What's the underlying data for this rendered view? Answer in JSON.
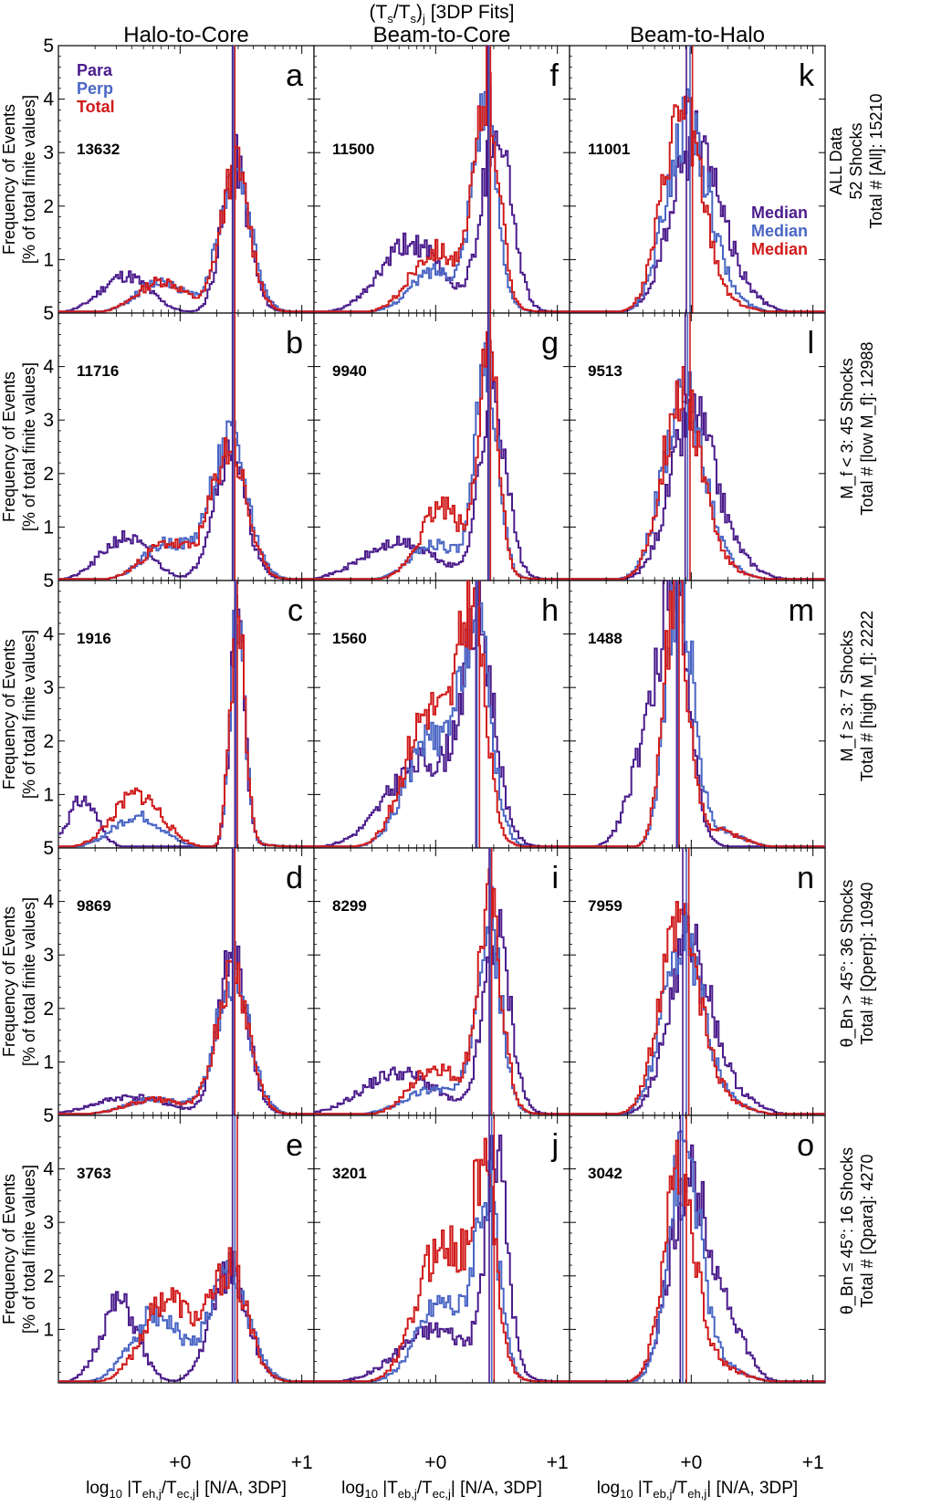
{
  "figure": {
    "title": "(T_s/T_s)_j [3DP Fits]",
    "columns": [
      "Halo-to-Core",
      "Beam-to-Core",
      "Beam-to-Halo"
    ],
    "ylabel": {
      "line1": "Frequency of Events",
      "line2": "[% of total finite values]"
    },
    "xlabels": [
      {
        "prefix": "log",
        "sub": "10",
        "body": " |T",
        "sub1": "eh,j",
        "mid": "/T",
        "sub2": "ec,j",
        "suffix": "| [N/A, 3DP]"
      },
      {
        "prefix": "log",
        "sub": "10",
        "body": " |T",
        "sub1": "eb,j",
        "mid": "/T",
        "sub2": "ec,j",
        "suffix": "| [N/A, 3DP]"
      },
      {
        "prefix": "log",
        "sub": "10",
        "body": " |T",
        "sub1": "eb,j",
        "mid": "/T",
        "sub2": "eh,j",
        "suffix": "| [N/A, 3DP]"
      }
    ],
    "xtick_labels": [
      "+0",
      "+1"
    ],
    "ytick_labels": [
      "1",
      "2",
      "3",
      "4",
      "5"
    ],
    "legend": [
      "Para",
      "Perp",
      "Total"
    ],
    "median_labels": [
      "Median",
      "Median",
      "Median"
    ],
    "colors": {
      "para": "#4B1C8C",
      "perp": "#4A66C4",
      "total": "#D01C1C"
    },
    "row_labels": [
      {
        "line1": "ALL Data",
        "line2": "52 Shocks",
        "line3": "Total # [All]:  15210"
      },
      {
        "line1": "M_f < 3:  45 Shocks",
        "line2": "Total # [low M_f]:  12988"
      },
      {
        "line1": "M_f ≥ 3:  7 Shocks",
        "line2": "Total # [high M_f]:  2222"
      },
      {
        "line1": "θ_Bn > 45°:  36 Shocks",
        "line2": "Total # [Qperp]:  10940"
      },
      {
        "line1": "θ_Bn ≤ 45°:  16 Shocks",
        "line2": "Total # [Qpara]:  4270"
      }
    ]
  },
  "chart_data": {
    "type": "histogram-grid",
    "rows": 5,
    "cols": 3,
    "xlim": [
      -1.0,
      1.1
    ],
    "ylim": [
      0,
      5
    ],
    "panels": [
      {
        "letter": "a",
        "count": "13632",
        "row": 0,
        "col": 0,
        "curves": {
          "para": {
            "mu": 0.45,
            "sig": 0.11,
            "amp": 2.7,
            "tailMu": -0.45,
            "tailSig": 0.2,
            "tailAmp": 0.7,
            "seed": 11
          },
          "perp": {
            "mu": 0.45,
            "sig": 0.13,
            "amp": 2.6,
            "tailMu": -0.15,
            "tailSig": 0.2,
            "tailAmp": 0.6,
            "seed": 12
          },
          "total": {
            "mu": 0.45,
            "sig": 0.12,
            "amp": 2.6,
            "tailMu": -0.15,
            "tailSig": 0.2,
            "tailAmp": 0.6,
            "seed": 13
          }
        },
        "medians": [
          0.43,
          0.44,
          0.45
        ]
      },
      {
        "letter": "b",
        "count": "11716",
        "row": 1,
        "col": 0,
        "curves": {
          "para": {
            "mu": 0.4,
            "sig": 0.13,
            "amp": 2.4,
            "tailMu": -0.45,
            "tailSig": 0.2,
            "tailAmp": 0.8,
            "seed": 21
          },
          "perp": {
            "mu": 0.4,
            "sig": 0.15,
            "amp": 2.5,
            "tailMu": -0.1,
            "tailSig": 0.2,
            "tailAmp": 0.7,
            "seed": 22
          },
          "total": {
            "mu": 0.4,
            "sig": 0.14,
            "amp": 2.4,
            "tailMu": -0.1,
            "tailSig": 0.2,
            "tailAmp": 0.7,
            "seed": 23
          }
        },
        "medians": [
          0.43,
          0.44,
          0.45
        ]
      },
      {
        "letter": "c",
        "count": "1916",
        "row": 2,
        "col": 0,
        "curves": {
          "para": {
            "mu": 0.47,
            "sig": 0.06,
            "amp": 4.2,
            "tailMu": -0.8,
            "tailSig": 0.12,
            "tailAmp": 0.9,
            "seed": 31
          },
          "perp": {
            "mu": 0.47,
            "sig": 0.06,
            "amp": 4.5,
            "tailMu": -0.35,
            "tailSig": 0.2,
            "tailAmp": 0.6,
            "seed": 32
          },
          "total": {
            "mu": 0.47,
            "sig": 0.06,
            "amp": 4.3,
            "tailMu": -0.35,
            "tailSig": 0.2,
            "tailAmp": 1.0,
            "seed": 33
          }
        },
        "medians": [
          0.45,
          0.46,
          0.47
        ]
      },
      {
        "letter": "d",
        "count": "9869",
        "row": 3,
        "col": 0,
        "curves": {
          "para": {
            "mu": 0.43,
            "sig": 0.12,
            "amp": 2.9,
            "tailMu": -0.4,
            "tailSig": 0.3,
            "tailAmp": 0.35,
            "seed": 41
          },
          "perp": {
            "mu": 0.43,
            "sig": 0.14,
            "amp": 2.5,
            "tailMu": -0.2,
            "tailSig": 0.25,
            "tailAmp": 0.3,
            "seed": 42
          },
          "total": {
            "mu": 0.43,
            "sig": 0.13,
            "amp": 2.7,
            "tailMu": -0.2,
            "tailSig": 0.25,
            "tailAmp": 0.3,
            "seed": 43
          }
        },
        "medians": [
          0.43,
          0.44,
          0.45
        ]
      },
      {
        "letter": "e",
        "count": "3763",
        "row": 4,
        "col": 0,
        "curves": {
          "para": {
            "mu": 0.4,
            "sig": 0.15,
            "amp": 2.0,
            "tailMu": -0.5,
            "tailSig": 0.15,
            "tailAmp": 1.5,
            "seed": 51
          },
          "perp": {
            "mu": 0.4,
            "sig": 0.16,
            "amp": 2.0,
            "tailMu": -0.2,
            "tailSig": 0.2,
            "tailAmp": 1.3,
            "seed": 52
          },
          "total": {
            "mu": 0.4,
            "sig": 0.15,
            "amp": 2.0,
            "tailMu": -0.1,
            "tailSig": 0.2,
            "tailAmp": 1.6,
            "seed": 53
          }
        },
        "medians": [
          0.43,
          0.45,
          0.47
        ]
      },
      {
        "letter": "f",
        "count": "11500",
        "row": 0,
        "col": 1,
        "curves": {
          "para": {
            "mu": 0.5,
            "sig": 0.12,
            "amp": 3.4,
            "tailMu": -0.2,
            "tailSig": 0.25,
            "tailAmp": 1.3,
            "seed": 61
          },
          "perp": {
            "mu": 0.4,
            "sig": 0.1,
            "amp": 3.8,
            "tailMu": 0.0,
            "tailSig": 0.2,
            "tailAmp": 0.8,
            "seed": 62
          },
          "total": {
            "mu": 0.42,
            "sig": 0.1,
            "amp": 4.0,
            "tailMu": 0.0,
            "tailSig": 0.2,
            "tailAmp": 1.2,
            "seed": 63
          }
        },
        "medians": [
          0.43,
          0.44,
          0.45
        ]
      },
      {
        "letter": "g",
        "count": "9940",
        "row": 1,
        "col": 1,
        "curves": {
          "para": {
            "mu": 0.47,
            "sig": 0.11,
            "amp": 3.4,
            "tailMu": -0.3,
            "tailSig": 0.3,
            "tailAmp": 0.7,
            "seed": 71
          },
          "perp": {
            "mu": 0.42,
            "sig": 0.09,
            "amp": 4.0,
            "tailMu": 0.0,
            "tailSig": 0.2,
            "tailAmp": 0.7,
            "seed": 72
          },
          "total": {
            "mu": 0.43,
            "sig": 0.08,
            "amp": 4.3,
            "tailMu": 0.05,
            "tailSig": 0.18,
            "tailAmp": 1.4,
            "seed": 73
          }
        },
        "medians": [
          0.43,
          0.44,
          0.45
        ]
      },
      {
        "letter": "h",
        "count": "1560",
        "row": 2,
        "col": 1,
        "curves": {
          "para": {
            "mu": 0.35,
            "sig": 0.13,
            "amp": 3.6,
            "tailMu": -0.1,
            "tailSig": 0.3,
            "tailAmp": 1.6,
            "seed": 81
          },
          "perp": {
            "mu": 0.33,
            "sig": 0.12,
            "amp": 3.9,
            "tailMu": -0.05,
            "tailSig": 0.2,
            "tailAmp": 2.0,
            "seed": 82
          },
          "total": {
            "mu": 0.3,
            "sig": 0.11,
            "amp": 3.9,
            "tailMu": -0.05,
            "tailSig": 0.2,
            "tailAmp": 2.6,
            "seed": 83
          }
        },
        "medians": [
          0.33,
          0.34,
          0.36
        ]
      },
      {
        "letter": "i",
        "count": "8299",
        "row": 3,
        "col": 1,
        "curves": {
          "para": {
            "mu": 0.5,
            "sig": 0.11,
            "amp": 3.3,
            "tailMu": -0.3,
            "tailSig": 0.3,
            "tailAmp": 0.8,
            "seed": 91
          },
          "perp": {
            "mu": 0.43,
            "sig": 0.1,
            "amp": 3.6,
            "tailMu": 0.0,
            "tailSig": 0.25,
            "tailAmp": 0.5,
            "seed": 92
          },
          "total": {
            "mu": 0.44,
            "sig": 0.1,
            "amp": 3.7,
            "tailMu": 0.0,
            "tailSig": 0.2,
            "tailAmp": 0.9,
            "seed": 93
          }
        },
        "medians": [
          0.44,
          0.45,
          0.46
        ]
      },
      {
        "letter": "j",
        "count": "3201",
        "row": 4,
        "col": 1,
        "curves": {
          "para": {
            "mu": 0.5,
            "sig": 0.09,
            "amp": 4.0,
            "tailMu": 0.0,
            "tailSig": 0.3,
            "tailAmp": 1.0,
            "seed": 101
          },
          "perp": {
            "mu": 0.42,
            "sig": 0.1,
            "amp": 3.3,
            "tailMu": 0.05,
            "tailSig": 0.2,
            "tailAmp": 1.5,
            "seed": 102
          },
          "total": {
            "mu": 0.4,
            "sig": 0.1,
            "amp": 3.4,
            "tailMu": 0.05,
            "tailSig": 0.2,
            "tailAmp": 2.6,
            "seed": 103
          }
        },
        "medians": [
          0.44,
          0.46,
          0.48
        ]
      },
      {
        "letter": "k",
        "count": "11001",
        "row": 0,
        "col": 2,
        "curves": {
          "para": {
            "mu": 0.02,
            "sig": 0.19,
            "amp": 3.0,
            "tailMu": 0.3,
            "tailSig": 0.2,
            "tailAmp": 0.5,
            "seed": 111
          },
          "perp": {
            "mu": -0.04,
            "sig": 0.17,
            "amp": 3.4,
            "tailMu": 0.2,
            "tailSig": 0.2,
            "tailAmp": 0.3,
            "seed": 112
          },
          "total": {
            "mu": -0.08,
            "sig": 0.16,
            "amp": 3.6,
            "tailMu": 0.2,
            "tailSig": 0.2,
            "tailAmp": 0.2,
            "seed": 113
          }
        },
        "medians": [
          -0.04,
          -0.01,
          0.01
        ]
      },
      {
        "letter": "l",
        "count": "9513",
        "row": 1,
        "col": 2,
        "curves": {
          "para": {
            "mu": 0.0,
            "sig": 0.18,
            "amp": 2.9,
            "tailMu": 0.3,
            "tailSig": 0.2,
            "tailAmp": 0.4,
            "seed": 121
          },
          "perp": {
            "mu": -0.07,
            "sig": 0.17,
            "amp": 3.3,
            "tailMu": 0.2,
            "tailSig": 0.2,
            "tailAmp": 0.2,
            "seed": 122
          },
          "total": {
            "mu": -0.08,
            "sig": 0.16,
            "amp": 3.4,
            "tailMu": 0.2,
            "tailSig": 0.2,
            "tailAmp": 0.2,
            "seed": 123
          }
        },
        "medians": [
          -0.05,
          -0.03,
          -0.01
        ]
      },
      {
        "letter": "m",
        "count": "1488",
        "row": 2,
        "col": 2,
        "curves": {
          "para": {
            "mu": -0.12,
            "sig": 0.11,
            "amp": 4.6,
            "tailMu": -0.35,
            "tailSig": 0.15,
            "tailAmp": 2.0,
            "seed": 131
          },
          "perp": {
            "mu": -0.1,
            "sig": 0.11,
            "amp": 4.8,
            "tailMu": 0.2,
            "tailSig": 0.2,
            "tailAmp": 0.3,
            "seed": 132
          },
          "total": {
            "mu": -0.13,
            "sig": 0.1,
            "amp": 4.7,
            "tailMu": 0.2,
            "tailSig": 0.2,
            "tailAmp": 0.3,
            "seed": 133
          }
        },
        "medians": [
          -0.12,
          -0.11,
          -0.1
        ]
      },
      {
        "letter": "n",
        "count": "7959",
        "row": 3,
        "col": 2,
        "curves": {
          "para": {
            "mu": -0.02,
            "sig": 0.17,
            "amp": 3.1,
            "tailMu": 0.3,
            "tailSig": 0.2,
            "tailAmp": 0.4,
            "seed": 141
          },
          "perp": {
            "mu": -0.08,
            "sig": 0.16,
            "amp": 3.2,
            "tailMu": 0.2,
            "tailSig": 0.2,
            "tailAmp": 0.3,
            "seed": 142
          },
          "total": {
            "mu": -0.1,
            "sig": 0.16,
            "amp": 3.4,
            "tailMu": 0.2,
            "tailSig": 0.2,
            "tailAmp": 0.3,
            "seed": 143
          }
        },
        "medians": [
          -0.07,
          -0.04,
          -0.02
        ]
      },
      {
        "letter": "o",
        "count": "3042",
        "row": 4,
        "col": 2,
        "curves": {
          "para": {
            "mu": -0.02,
            "sig": 0.16,
            "amp": 3.6,
            "tailMu": 0.3,
            "tailSig": 0.15,
            "tailAmp": 1.0,
            "seed": 151
          },
          "perp": {
            "mu": -0.06,
            "sig": 0.13,
            "amp": 4.2,
            "tailMu": 0.2,
            "tailSig": 0.2,
            "tailAmp": 0.3,
            "seed": 152
          },
          "total": {
            "mu": -0.1,
            "sig": 0.13,
            "amp": 3.8,
            "tailMu": 0.2,
            "tailSig": 0.2,
            "tailAmp": 0.3,
            "seed": 153
          }
        },
        "medians": [
          -0.09,
          -0.07,
          -0.04
        ]
      }
    ]
  }
}
